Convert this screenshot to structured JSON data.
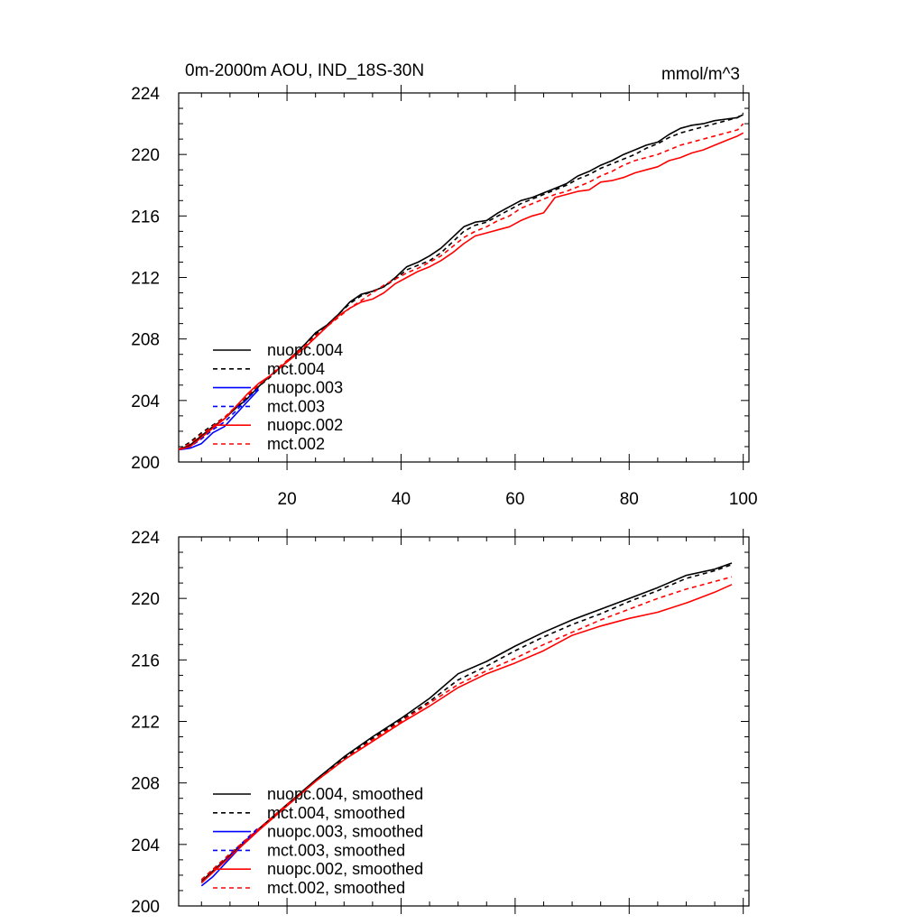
{
  "chart_data": [
    {
      "type": "line",
      "title_left": "0m-2000m AOU, IND_18S-30N",
      "title_right": "mmol/m^3",
      "xlim": [
        1,
        101
      ],
      "ylim": [
        200,
        224
      ],
      "x_ticks": [
        20,
        40,
        60,
        80,
        100
      ],
      "x_tick_labels": [
        "20",
        "40",
        "60",
        "80",
        "100"
      ],
      "y_ticks": [
        200,
        204,
        208,
        212,
        216,
        220,
        224
      ],
      "y_tick_labels": [
        "200",
        "204",
        "208",
        "212",
        "216",
        "220",
        "224"
      ],
      "legend_position": "lower-left",
      "series": [
        {
          "name": "nuopc.004",
          "color": "#000000",
          "dash": "solid",
          "x": [
            1,
            3,
            5,
            7,
            9,
            11,
            13,
            15,
            17,
            19,
            21,
            23,
            25,
            27,
            29,
            31,
            33,
            35,
            37,
            39,
            41,
            43,
            45,
            47,
            49,
            51,
            53,
            55,
            57,
            59,
            61,
            63,
            65,
            67,
            69,
            71,
            73,
            75,
            77,
            79,
            81,
            83,
            85,
            87,
            89,
            91,
            93,
            95,
            97,
            99,
            100
          ],
          "y": [
            200.8,
            201.1,
            201.7,
            202.3,
            202.8,
            203.5,
            204.1,
            204.9,
            205.6,
            206.2,
            206.9,
            207.6,
            208.4,
            208.9,
            209.6,
            210.4,
            210.9,
            211.1,
            211.4,
            212.0,
            212.7,
            213.0,
            213.4,
            213.9,
            214.6,
            215.3,
            215.6,
            215.7,
            216.2,
            216.6,
            217.0,
            217.2,
            217.5,
            217.8,
            218.1,
            218.6,
            218.9,
            219.3,
            219.6,
            220.0,
            220.3,
            220.6,
            220.8,
            221.3,
            221.7,
            221.9,
            222.0,
            222.2,
            222.3,
            222.4,
            222.6
          ]
        },
        {
          "name": "mct.004",
          "color": "#000000",
          "dash": "dashed",
          "x": [
            1,
            3,
            5,
            7,
            9,
            11,
            13,
            15,
            17,
            19,
            21,
            23,
            25,
            27,
            29,
            31,
            33,
            35,
            37,
            39,
            41,
            43,
            45,
            47,
            49,
            51,
            53,
            55,
            57,
            59,
            61,
            63,
            65,
            67,
            69,
            71,
            73,
            75,
            77,
            79,
            81,
            83,
            85,
            87,
            89,
            91,
            93,
            95,
            97,
            99,
            100
          ],
          "y": [
            200.8,
            201.3,
            201.9,
            202.4,
            202.9,
            203.5,
            204.2,
            204.9,
            205.5,
            206.2,
            206.9,
            207.6,
            208.3,
            208.9,
            209.6,
            210.3,
            210.8,
            211.1,
            211.4,
            211.9,
            212.5,
            212.8,
            213.1,
            213.6,
            214.3,
            215.0,
            215.4,
            215.6,
            216.0,
            216.4,
            216.8,
            217.1,
            217.4,
            217.7,
            218.0,
            218.4,
            218.7,
            219.1,
            219.4,
            219.7,
            220.0,
            220.4,
            220.7,
            221.1,
            221.4,
            221.6,
            221.8,
            222.0,
            222.2,
            222.4,
            222.7
          ]
        },
        {
          "name": "nuopc.003",
          "color": "#0000ff",
          "dash": "solid",
          "x": [
            1,
            3,
            5,
            7,
            9,
            11,
            13,
            15
          ],
          "y": [
            200.8,
            200.9,
            201.2,
            201.9,
            202.3,
            203.1,
            203.9,
            204.7
          ]
        },
        {
          "name": "mct.003",
          "color": "#0000ff",
          "dash": "dashed",
          "x": [
            1,
            3,
            5,
            7,
            9,
            11,
            13,
            15
          ],
          "y": [
            200.8,
            201.0,
            201.5,
            202.1,
            202.6,
            203.3,
            204.1,
            204.8
          ]
        },
        {
          "name": "nuopc.002",
          "color": "#ff0000",
          "dash": "solid",
          "x": [
            1,
            3,
            5,
            7,
            9,
            11,
            13,
            15,
            17,
            19,
            21,
            23,
            25,
            27,
            29,
            31,
            33,
            35,
            37,
            39,
            41,
            43,
            45,
            47,
            49,
            51,
            53,
            55,
            57,
            59,
            61,
            63,
            65,
            67,
            69,
            71,
            73,
            75,
            77,
            79,
            81,
            83,
            85,
            87,
            89,
            91,
            93,
            95,
            97,
            99,
            100
          ],
          "y": [
            200.8,
            201.0,
            201.6,
            202.2,
            202.8,
            203.6,
            204.4,
            205.1,
            205.6,
            206.2,
            206.8,
            207.4,
            208.1,
            208.8,
            209.5,
            210.0,
            210.4,
            210.6,
            211.0,
            211.6,
            212.0,
            212.4,
            212.7,
            213.1,
            213.6,
            214.2,
            214.7,
            214.9,
            215.1,
            215.3,
            215.7,
            216.0,
            216.2,
            217.2,
            217.4,
            217.6,
            217.7,
            218.2,
            218.3,
            218.5,
            218.8,
            219.0,
            219.2,
            219.6,
            219.8,
            220.1,
            220.3,
            220.6,
            220.9,
            221.2,
            221.4
          ]
        },
        {
          "name": "mct.002",
          "color": "#ff0000",
          "dash": "dashed",
          "x": [
            1,
            3,
            5,
            7,
            9,
            11,
            13,
            15,
            17,
            19,
            21,
            23,
            25,
            27,
            29,
            31,
            33,
            35,
            37,
            39,
            41,
            43,
            45,
            47,
            49,
            51,
            53,
            55,
            57,
            59,
            61,
            63,
            65,
            67,
            69,
            71,
            73,
            75,
            77,
            79,
            81,
            83,
            85,
            87,
            89,
            91,
            93,
            95,
            97,
            99,
            100
          ],
          "y": [
            200.8,
            201.2,
            201.8,
            202.3,
            202.9,
            203.6,
            204.3,
            205.0,
            205.6,
            206.3,
            206.9,
            207.5,
            208.2,
            208.8,
            209.4,
            210.0,
            210.5,
            211.0,
            211.5,
            211.9,
            212.3,
            212.6,
            213.0,
            213.4,
            214.0,
            214.6,
            215.0,
            215.3,
            215.7,
            216.0,
            216.5,
            216.8,
            217.1,
            217.4,
            217.6,
            217.9,
            218.2,
            218.6,
            218.9,
            219.3,
            219.6,
            219.8,
            220.0,
            220.3,
            220.6,
            220.8,
            221.0,
            221.2,
            221.4,
            221.6,
            222.0
          ]
        }
      ]
    },
    {
      "type": "line",
      "xlim": [
        1,
        101
      ],
      "ylim": [
        200,
        224
      ],
      "x_ticks": [
        20,
        40,
        60,
        80,
        100
      ],
      "x_tick_labels": [],
      "y_ticks": [
        200,
        204,
        208,
        212,
        216,
        220,
        224
      ],
      "y_tick_labels": [
        "200",
        "204",
        "208",
        "212",
        "216",
        "220",
        "224"
      ],
      "legend_position": "lower-left",
      "series": [
        {
          "name": "nuopc.004, smoothed",
          "color": "#000000",
          "dash": "solid",
          "x": [
            5,
            10,
            15,
            20,
            25,
            30,
            35,
            40,
            45,
            50,
            55,
            60,
            65,
            70,
            75,
            80,
            85,
            90,
            95,
            98
          ],
          "y": [
            201.6,
            203.3,
            205.0,
            206.6,
            208.2,
            209.7,
            211.0,
            212.2,
            213.5,
            215.1,
            215.9,
            216.9,
            217.8,
            218.6,
            219.3,
            220.0,
            220.7,
            221.5,
            221.9,
            222.3
          ]
        },
        {
          "name": "mct.004, smoothed",
          "color": "#000000",
          "dash": "dashed",
          "x": [
            5,
            10,
            15,
            20,
            25,
            30,
            35,
            40,
            45,
            50,
            55,
            60,
            65,
            70,
            75,
            80,
            85,
            90,
            95,
            98
          ],
          "y": [
            201.7,
            203.4,
            205.0,
            206.6,
            208.1,
            209.6,
            210.9,
            212.1,
            213.3,
            214.7,
            215.6,
            216.6,
            217.5,
            218.3,
            219.0,
            219.8,
            220.5,
            221.3,
            221.8,
            222.2
          ]
        },
        {
          "name": "nuopc.003, smoothed",
          "color": "#0000ff",
          "dash": "solid",
          "x": [
            5,
            7,
            9,
            11,
            13,
            15
          ],
          "y": [
            201.3,
            201.9,
            202.7,
            203.5,
            204.3,
            205.0
          ]
        },
        {
          "name": "mct.003, smoothed",
          "color": "#0000ff",
          "dash": "dashed",
          "x": [
            5,
            7,
            9,
            11,
            13,
            15
          ],
          "y": [
            201.5,
            202.2,
            202.9,
            203.7,
            204.4,
            205.1
          ]
        },
        {
          "name": "nuopc.002, smoothed",
          "color": "#ff0000",
          "dash": "solid",
          "x": [
            5,
            10,
            15,
            20,
            25,
            30,
            35,
            40,
            45,
            50,
            55,
            60,
            65,
            70,
            75,
            80,
            85,
            90,
            95,
            98
          ],
          "y": [
            201.5,
            203.2,
            204.9,
            206.5,
            208.1,
            209.5,
            210.7,
            211.9,
            213.0,
            214.2,
            215.1,
            215.8,
            216.6,
            217.6,
            218.2,
            218.7,
            219.1,
            219.7,
            220.4,
            220.9
          ]
        },
        {
          "name": "mct.002, smoothed",
          "color": "#ff0000",
          "dash": "dashed",
          "x": [
            5,
            10,
            15,
            20,
            25,
            30,
            35,
            40,
            45,
            50,
            55,
            60,
            65,
            70,
            75,
            80,
            85,
            90,
            95,
            98
          ],
          "y": [
            201.7,
            203.4,
            205.0,
            206.6,
            208.1,
            209.5,
            210.8,
            212.0,
            213.2,
            214.4,
            215.3,
            216.1,
            217.0,
            217.8,
            218.6,
            219.3,
            220.0,
            220.6,
            221.1,
            221.4
          ]
        }
      ]
    }
  ]
}
